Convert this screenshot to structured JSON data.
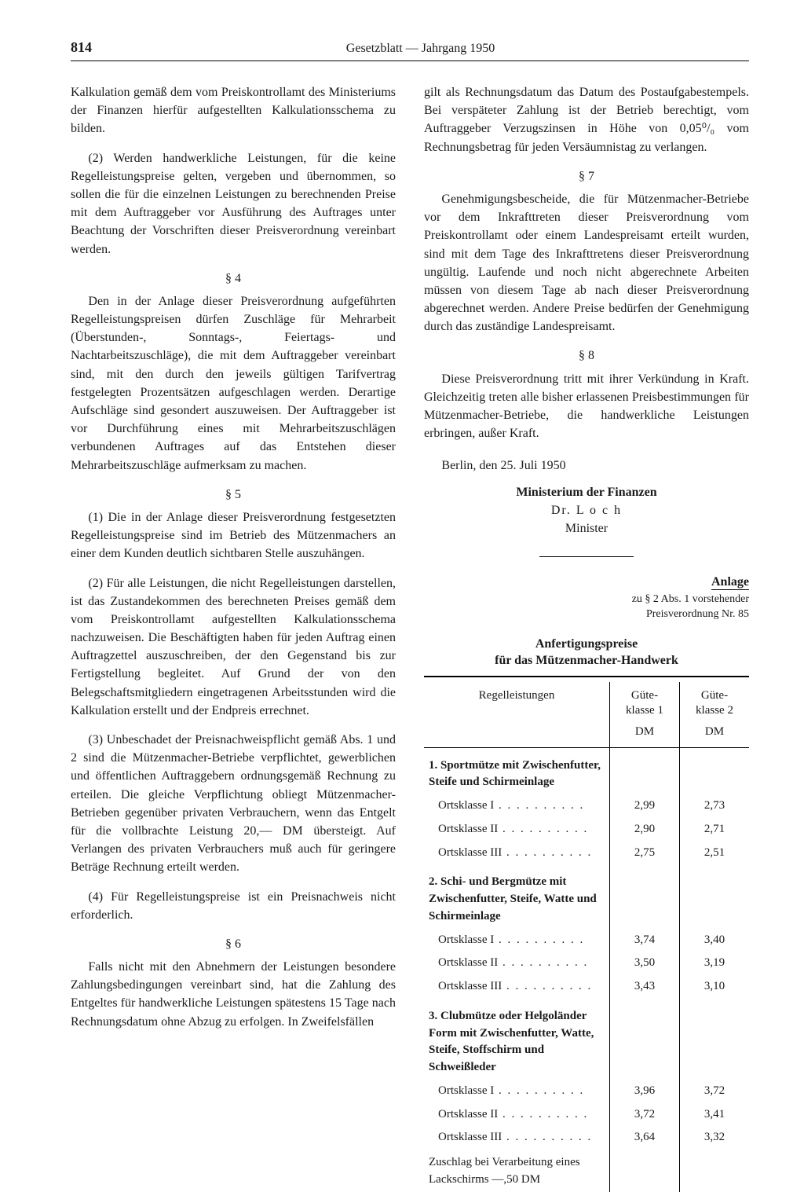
{
  "header": {
    "page_number": "814",
    "title": "Gesetzblatt — Jahrgang 1950"
  },
  "left": {
    "p1": "Kalkulation gemäß dem vom Preiskontrollamt des Ministeriums der Finanzen hierfür aufgestellten Kalkulationsschema zu bilden.",
    "p2": "(2) Werden handwerkliche Leistungen, für die keine Regelleistungspreise gelten, vergeben und übernommen, so sollen die für die einzelnen Leistungen zu berechnenden Preise mit dem Auftraggeber vor Ausführung des Auftrages unter Beachtung der Vorschriften dieser Preisverordnung vereinbart werden.",
    "s4": "§ 4",
    "p4": "Den in der Anlage dieser Preisverordnung aufgeführten Regelleistungspreisen dürfen Zuschläge für Mehrarbeit (Überstunden-, Sonntags-, Feiertags- und Nachtarbeitszuschläge), die mit dem Auftraggeber vereinbart sind, mit den durch den jeweils gültigen Tarifvertrag festgelegten Prozentsätzen aufgeschlagen werden. Derartige Aufschläge sind gesondert auszuweisen. Der Auftraggeber ist vor Durchführung eines mit Mehrarbeitszuschlägen verbundenen Auftrages auf das Entstehen dieser Mehrarbeitszuschläge aufmerksam zu machen.",
    "s5": "§ 5",
    "p5a": "(1) Die in der Anlage dieser Preisverordnung festgesetzten Regelleistungspreise sind im Betrieb des Mützenmachers an einer dem Kunden deutlich sichtbaren Stelle auszuhängen.",
    "p5b": "(2) Für alle Leistungen, die nicht Regelleistungen darstellen, ist das Zustandekommen des berechneten Preises gemäß dem vom Preiskontrollamt aufgestellten Kalkulationsschema nachzuweisen. Die Beschäftigten haben für jeden Auftrag einen Auftragzettel auszuschreiben, der den Gegenstand bis zur Fertigstellung begleitet. Auf Grund der von den Belegschaftsmitgliedern eingetragenen Arbeitsstunden wird die Kalkulation erstellt und der Endpreis errechnet.",
    "p5c": "(3) Unbeschadet der Preisnachweispflicht gemäß Abs. 1 und 2 sind die Mützenmacher-Betriebe verpflichtet, gewerblichen und öffentlichen Auftraggebern ordnungsgemäß Rechnung zu erteilen. Die gleiche Verpflichtung obliegt Mützenmacher-Betrieben gegenüber privaten Verbrauchern, wenn das Entgelt für die vollbrachte Leistung 20,— DM übersteigt. Auf Verlangen des privaten Verbrauchers muß auch für geringere Beträge Rechnung erteilt werden.",
    "p5d": "(4) Für Regelleistungspreise ist ein Preisnachweis nicht erforderlich.",
    "s6": "§ 6",
    "p6": "Falls nicht mit den Abnehmern der Leistungen besondere Zahlungsbedingungen vereinbart sind, hat die Zahlung des Entgeltes für handwerkliche Leistungen spätestens 15 Tage nach Rechnungsdatum ohne Abzug zu erfolgen. In Zweifelsfällen"
  },
  "right": {
    "p_cont": "gilt als Rechnungsdatum das Datum des Postaufgabestempels. Bei verspäteter Zahlung ist der Betrieb berechtigt, vom Auftraggeber Verzugszinsen in Höhe von 0,05⁰/₀ vom Rechnungsbetrag für jeden Versäumnistag zu verlangen.",
    "s7": "§ 7",
    "p7": "Genehmigungsbescheide, die für Mützenmacher-Betriebe vor dem Inkrafttreten dieser Preisverordnung vom Preiskontrollamt oder einem Landespreisamt erteilt wurden, sind mit dem Tage des Inkrafttretens dieser Preisverordnung ungültig. Laufende und noch nicht abgerechnete Arbeiten müssen von diesem Tage ab nach dieser Preisverordnung abgerechnet werden. Andere Preise bedürfen der Genehmigung durch das zuständige Landespreisamt.",
    "s8": "§ 8",
    "p8": "Diese Preisverordnung tritt mit ihrer Verkündung in Kraft. Gleichzeitig treten alle bisher erlassenen Preisbestimmungen für Mützenmacher-Betriebe, die handwerkliche Leistungen erbringen, außer Kraft.",
    "date": "Berlin, den 25. Juli 1950",
    "ministry": "Ministerium der Finanzen",
    "sig_name": "Dr. L o c h",
    "sig_role": "Minister",
    "anlage": "Anlage",
    "anlage_sub1": "zu § 2 Abs. 1 vorstehender",
    "anlage_sub2": "Preisverordnung Nr. 85",
    "table_title1": "Anfertigungspreise",
    "table_title2": "für das Mützenmacher-Handwerk"
  },
  "table": {
    "col_label": "Regelleistungen",
    "col1a": "Güte-",
    "col1b": "klasse 1",
    "col2a": "Güte-",
    "col2b": "klasse 2",
    "unit": "DM",
    "groups": [
      {
        "head": "1. Sportmütze mit Zwischenfutter, Steife und Schirmeinlage",
        "rows": [
          {
            "label": "Ortsklasse I",
            "v1": "2,99",
            "v2": "2,73"
          },
          {
            "label": "Ortsklasse II",
            "v1": "2,90",
            "v2": "2,71"
          },
          {
            "label": "Ortsklasse III",
            "v1": "2,75",
            "v2": "2,51"
          }
        ]
      },
      {
        "head": "2. Schi- und Bergmütze mit Zwischenfutter, Steife, Watte und Schirmeinlage",
        "rows": [
          {
            "label": "Ortsklasse I",
            "v1": "3,74",
            "v2": "3,40"
          },
          {
            "label": "Ortsklasse II",
            "v1": "3,50",
            "v2": "3,19"
          },
          {
            "label": "Ortsklasse III",
            "v1": "3,43",
            "v2": "3,10"
          }
        ]
      },
      {
        "head": "3. Clubmütze oder Helgoländer Form mit Zwischenfutter, Watte, Steife, Stoffschirm und Schweißleder",
        "rows": [
          {
            "label": "Ortsklasse I",
            "v1": "3,96",
            "v2": "3,72"
          },
          {
            "label": "Ortsklasse II",
            "v1": "3,72",
            "v2": "3,41"
          },
          {
            "label": "Ortsklasse III",
            "v1": "3,64",
            "v2": "3,32"
          }
        ]
      }
    ],
    "footnote": "Zuschlag bei Verarbeitung eines Lackschirms —,50 DM"
  }
}
